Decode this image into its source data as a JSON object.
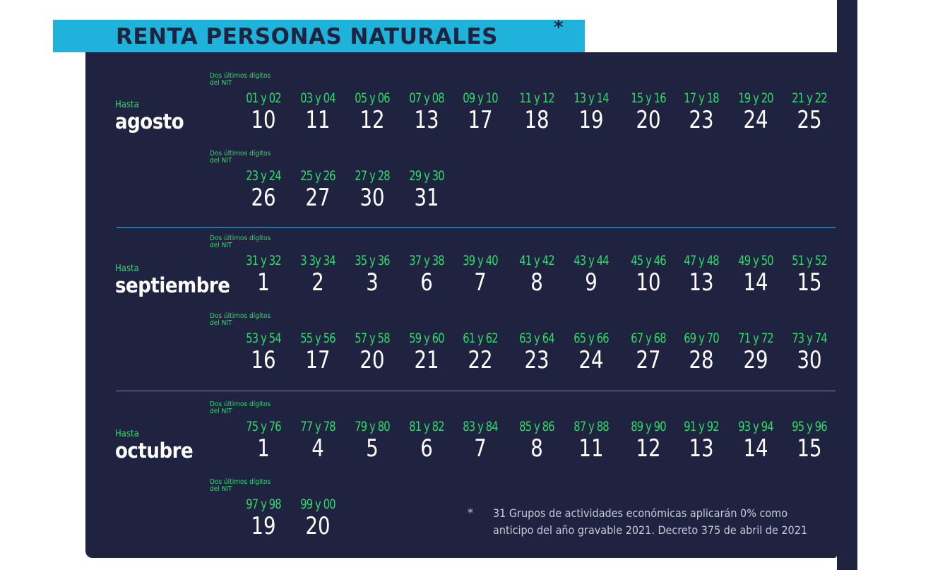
{
  "title": "RENTA PERSONAS NATURALES",
  "title_mark": "*",
  "colors": {
    "panel": "#1f2340",
    "title_bar": "#1fb3dc",
    "digits": "#2edb6a",
    "dates": "#ffffff",
    "divider": "#3fa9d4"
  },
  "digits_label_line1": "Dos últimos dígitos",
  "digits_label_line2": "del NIT",
  "hasta_label": "Hasta",
  "months": [
    {
      "name": "agosto",
      "rows": [
        {
          "pairs": [
            "01 y 02",
            "03 y 04",
            "05 y 06",
            "07 y 08",
            "09 y 10",
            "11 y 12",
            "13 y 14",
            "15 y 16",
            "17 y 18",
            "19 y 20",
            "21 y 22"
          ],
          "days": [
            "10",
            "11",
            "12",
            "13",
            "17",
            "18",
            "19",
            "20",
            "23",
            "24",
            "25"
          ]
        },
        {
          "pairs": [
            "23 y 24",
            "25 y 26",
            "27 y 28",
            "29 y 30"
          ],
          "days": [
            "26",
            "27",
            "30",
            "31"
          ]
        }
      ]
    },
    {
      "name": "septiembre",
      "rows": [
        {
          "pairs": [
            "31 y 32",
            "3 3y 34",
            "35 y 36",
            "37 y 38",
            "39 y 40",
            "41 y 42",
            "43 y 44",
            "45 y 46",
            "47 y 48",
            "49 y 50",
            "51 y 52"
          ],
          "days": [
            "1",
            "2",
            "3",
            "6",
            "7",
            "8",
            "9",
            "10",
            "13",
            "14",
            "15"
          ]
        },
        {
          "pairs": [
            "53 y 54",
            "55 y 56",
            "57 y 58",
            "59 y 60",
            "61 y 62",
            "63 y 64",
            "65 y 66",
            "67 y 68",
            "69 y 70",
            "71 y 72",
            "73 y 74"
          ],
          "days": [
            "16",
            "17",
            "20",
            "21",
            "22",
            "23",
            "24",
            "27",
            "28",
            "29",
            "30"
          ]
        }
      ]
    },
    {
      "name": "octubre",
      "rows": [
        {
          "pairs": [
            "75 y 76",
            "77 y 78",
            "79 y 80",
            "81 y 82",
            "83 y 84",
            "85 y 86",
            "87 y 88",
            "89 y 90",
            "91 y 92",
            "93 y 94",
            "95 y 96"
          ],
          "days": [
            "1",
            "4",
            "5",
            "6",
            "7",
            "8",
            "11",
            "12",
            "13",
            "14",
            "15"
          ]
        },
        {
          "pairs": [
            "97 y 98",
            "99 y 00"
          ],
          "days": [
            "19",
            "20"
          ]
        }
      ]
    }
  ],
  "footnote": {
    "mark": "*",
    "line1": "31 Grupos de actividades económicas aplicarán 0% como",
    "line2": "anticipo del año gravable 2021. Decreto 375 de abril de 2021"
  }
}
